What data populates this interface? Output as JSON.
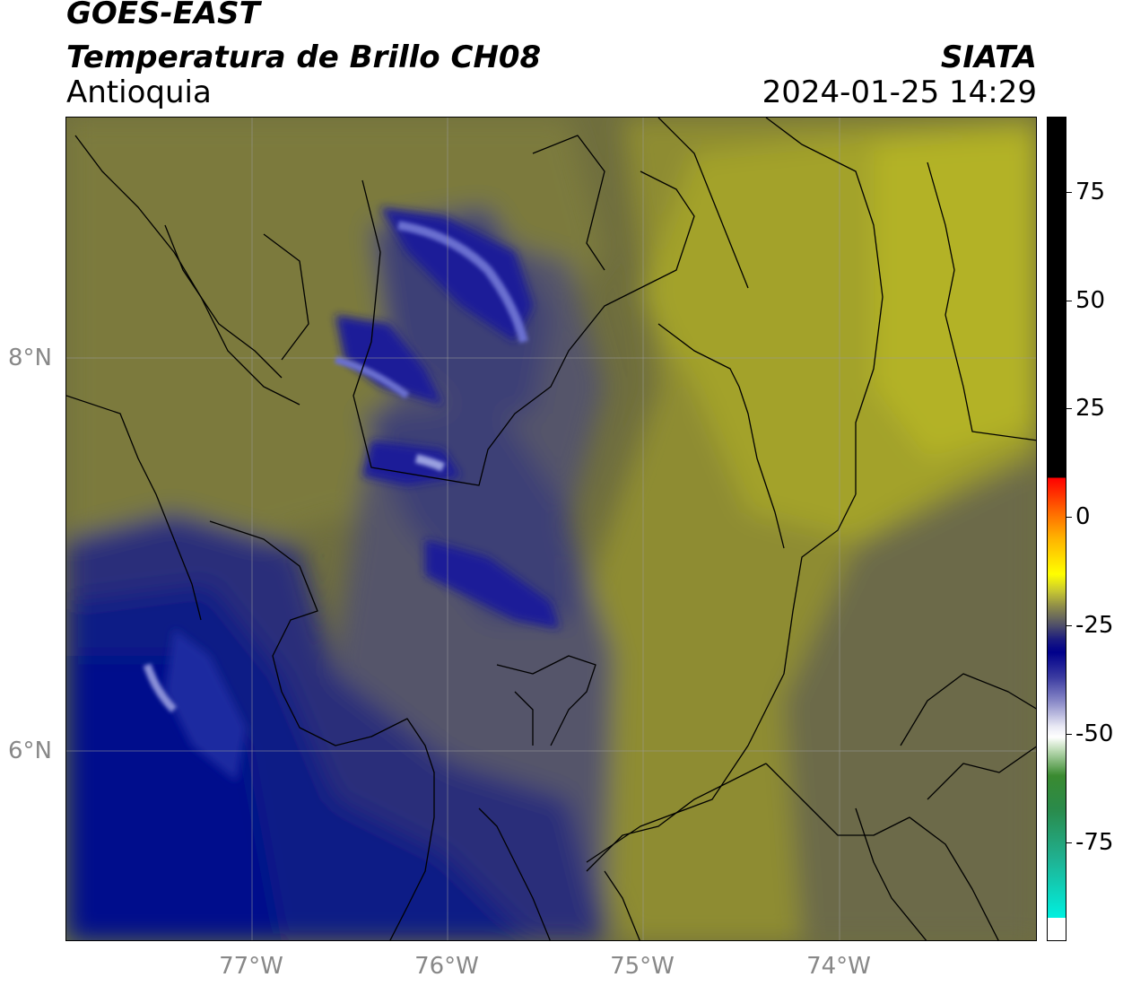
{
  "header": {
    "satellite": "GOES-EAST",
    "product": "Temperatura de Brillo CH08",
    "region": "Antioquia",
    "organization": "SIATA",
    "timestamp": "2024-01-25 14:29"
  },
  "map": {
    "lon_labels": [
      "77°W",
      "76°W",
      "75°W",
      "74°W"
    ],
    "lat_labels": [
      "8°N",
      "6°N"
    ]
  },
  "colorbar": {
    "tick_labels": [
      "75",
      "50",
      "25",
      "0",
      "-25",
      "-50",
      "-75"
    ],
    "colors": {
      "warm": "#000000",
      "red": "#ff0000",
      "yellow": "#ffff00",
      "olive": "#8c8a4a",
      "navy": "#00008b",
      "white": "#ffffff",
      "green": "#3a8a30",
      "cyan": "#00f0e0"
    }
  }
}
